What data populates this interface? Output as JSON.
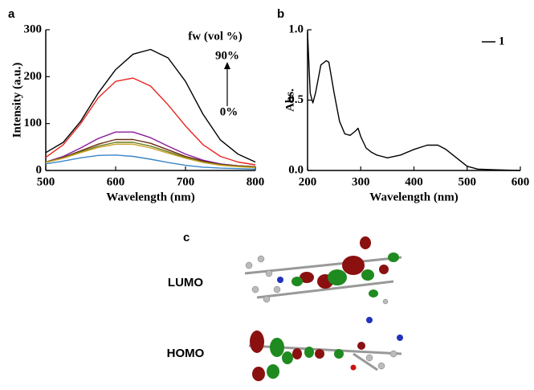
{
  "chart_data": [
    {
      "type": "line",
      "panel": "a",
      "xlabel": "Wavelength (nm)",
      "ylabel": "Intensity (a.u.)",
      "x": [
        500,
        525,
        550,
        575,
        600,
        625,
        650,
        675,
        700,
        725,
        750,
        775,
        800
      ],
      "series": [
        {
          "color": "#000000",
          "values": [
            38,
            60,
            105,
            165,
            215,
            248,
            258,
            240,
            190,
            120,
            65,
            35,
            18
          ]
        },
        {
          "color": "#e8251f",
          "values": [
            28,
            55,
            100,
            155,
            190,
            197,
            180,
            140,
            95,
            55,
            30,
            18,
            12
          ]
        },
        {
          "color": "#8b1a9c",
          "values": [
            18,
            30,
            48,
            68,
            82,
            82,
            70,
            52,
            35,
            22,
            14,
            10,
            8
          ]
        },
        {
          "color": "#6b2a12",
          "values": [
            18,
            28,
            42,
            56,
            66,
            66,
            58,
            44,
            30,
            20,
            13,
            10,
            8
          ]
        },
        {
          "color": "#6b7a1a",
          "values": [
            18,
            27,
            40,
            52,
            60,
            60,
            52,
            40,
            28,
            18,
            12,
            9,
            7
          ]
        },
        {
          "color": "#c9a227",
          "values": [
            17,
            26,
            38,
            49,
            56,
            56,
            48,
            37,
            26,
            17,
            11,
            8,
            6
          ]
        },
        {
          "color": "#3a86c8",
          "values": [
            14,
            20,
            27,
            32,
            33,
            30,
            24,
            17,
            11,
            7,
            5,
            4,
            3
          ]
        }
      ],
      "xlim": [
        500,
        800
      ],
      "xticks": [
        500,
        600,
        700,
        800
      ],
      "ylim": [
        0,
        300
      ],
      "yticks": [
        0,
        100,
        200,
        300
      ],
      "annotations": [
        "fw (vol %)",
        "90%",
        "0%"
      ]
    },
    {
      "type": "line",
      "panel": "b",
      "xlabel": "Wavelength (nm)",
      "ylabel": "Abs.",
      "x": [
        200,
        205,
        210,
        215,
        225,
        235,
        240,
        250,
        260,
        270,
        280,
        290,
        295,
        300,
        310,
        320,
        330,
        340,
        350,
        375,
        400,
        425,
        445,
        460,
        480,
        500,
        520,
        550,
        600
      ],
      "series": [
        {
          "name": "1",
          "color": "#000000",
          "values": [
            0.98,
            0.55,
            0.48,
            0.55,
            0.75,
            0.78,
            0.77,
            0.55,
            0.35,
            0.26,
            0.25,
            0.28,
            0.3,
            0.24,
            0.16,
            0.13,
            0.11,
            0.1,
            0.09,
            0.11,
            0.15,
            0.18,
            0.18,
            0.15,
            0.09,
            0.03,
            0.01,
            0.005,
            0.0
          ]
        }
      ],
      "xlim": [
        200,
        600
      ],
      "xticks": [
        200,
        300,
        400,
        500,
        600
      ],
      "ylim": [
        0,
        1
      ],
      "yticks": [
        {
          "value": 0,
          "label": "0.0"
        },
        {
          "value": 0.5,
          "label": "0.5"
        },
        {
          "value": 1,
          "label": "1.0"
        }
      ],
      "legend": "top-right"
    }
  ],
  "panel_c": {
    "panel": "c",
    "labels": [
      "LUMO",
      "HOMO"
    ]
  }
}
